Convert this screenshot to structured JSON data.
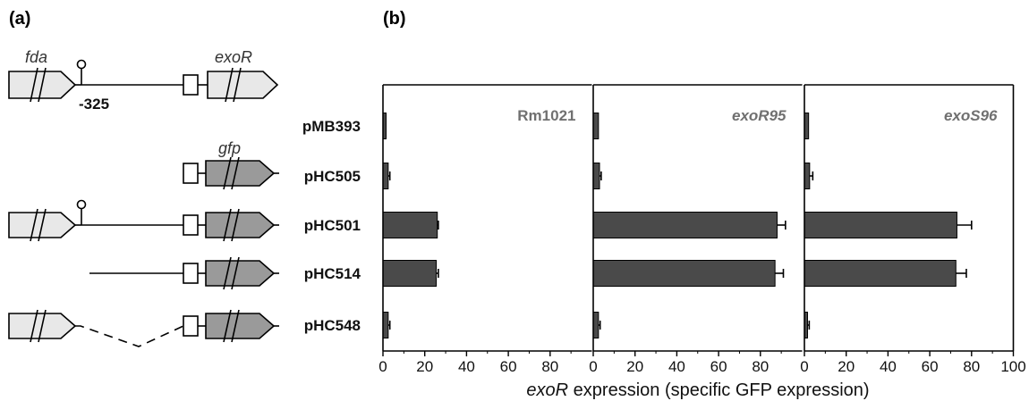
{
  "panel_a": {
    "label": "(a)",
    "gene_labels": {
      "fda": "fda",
      "exoR": "exoR",
      "gfp": "gfp"
    },
    "position_label": "-325"
  },
  "panel_b": {
    "label": "(b)"
  },
  "chart_data": {
    "type": "bar",
    "orientation": "horizontal",
    "categories": [
      "pMB393",
      "pHC505",
      "pHC501",
      "pHC514",
      "pHC548"
    ],
    "xlabel_italic": "exoR",
    "xlabel_rest": " expression (specific GFP expression)",
    "grid": false,
    "bar_color": "#4a4a4a",
    "facets": [
      {
        "name": "Rm1021",
        "italic": false,
        "values": [
          1.5,
          2.5,
          26,
          25.5,
          2.5
        ],
        "errors": [
          0,
          0.8,
          0.5,
          1.0,
          0.8
        ],
        "xlim": [
          0,
          100
        ],
        "ticks": [
          0,
          20,
          40,
          60,
          80
        ]
      },
      {
        "name": "exoR95",
        "italic": true,
        "values": [
          2.5,
          3,
          88,
          87,
          2.5
        ],
        "errors": [
          0,
          0.8,
          4,
          4,
          0.8
        ],
        "xlim": [
          0,
          100
        ],
        "ticks": [
          0,
          20,
          40,
          60,
          80
        ]
      },
      {
        "name": "exoS96",
        "italic": true,
        "values": [
          2,
          2.5,
          73,
          72.5,
          1.5
        ],
        "errors": [
          0,
          1.5,
          7,
          5,
          0.8
        ],
        "xlim": [
          0,
          100
        ],
        "ticks": [
          0,
          20,
          40,
          60,
          80,
          100
        ]
      }
    ]
  }
}
